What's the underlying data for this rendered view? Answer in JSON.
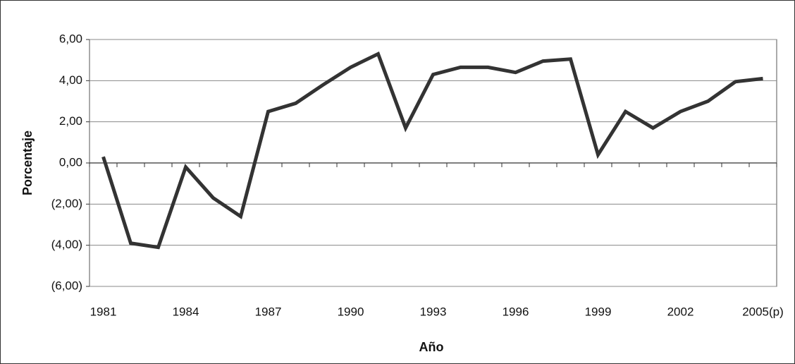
{
  "chart_data": {
    "type": "line",
    "x_label": "Año",
    "y_label": "Porcentaje",
    "categories": [
      "1981",
      null,
      null,
      "1984",
      null,
      null,
      "1987",
      null,
      null,
      "1990",
      null,
      null,
      "1993",
      null,
      null,
      "1996",
      null,
      null,
      "1999",
      null,
      null,
      "2002",
      null,
      null,
      "2005(p)"
    ],
    "series": [
      {
        "name": "Porcentaje",
        "color": "#333333",
        "values": [
          0.3,
          -3.9,
          -4.1,
          -0.2,
          -1.7,
          -2.6,
          2.5,
          2.9,
          3.8,
          4.65,
          5.3,
          1.7,
          4.3,
          4.65,
          4.65,
          4.4,
          4.95,
          5.05,
          0.4,
          2.5,
          1.7,
          2.5,
          3.0,
          3.95,
          4.1
        ]
      }
    ],
    "ylim": [
      -6,
      6
    ],
    "yticks": [
      {
        "value": -6,
        "label": "(6,00)"
      },
      {
        "value": -4,
        "label": "(4,00)"
      },
      {
        "value": -2,
        "label": "(2,00)"
      },
      {
        "value": 0,
        "label": "0,00"
      },
      {
        "value": 2,
        "label": "2,00"
      },
      {
        "value": 4,
        "label": "4,00"
      },
      {
        "value": 6,
        "label": "6,00"
      }
    ],
    "grid": true
  }
}
